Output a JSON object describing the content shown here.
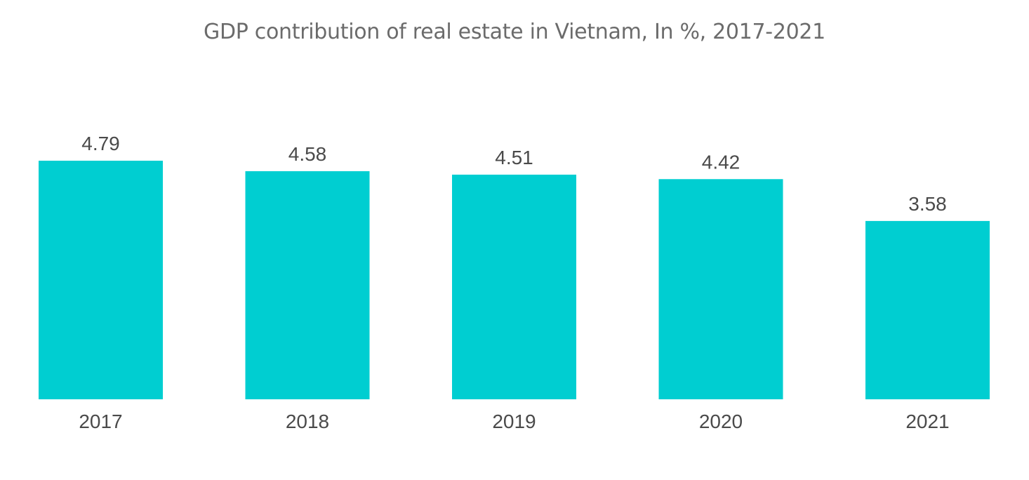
{
  "chart_data": {
    "type": "bar",
    "title": "GDP contribution of real estate in Vietnam, In %, 2017-2021",
    "categories": [
      "2017",
      "2018",
      "2019",
      "2020",
      "2021"
    ],
    "values": [
      4.79,
      4.58,
      4.51,
      4.42,
      3.58
    ],
    "value_labels": [
      "4.79",
      "4.58",
      "4.51",
      "4.42",
      "3.58"
    ],
    "xlabel": "",
    "ylabel": "",
    "ylim": [
      0,
      4.79
    ],
    "grid": false,
    "legend": "none",
    "bar_color": "#00CED1"
  }
}
